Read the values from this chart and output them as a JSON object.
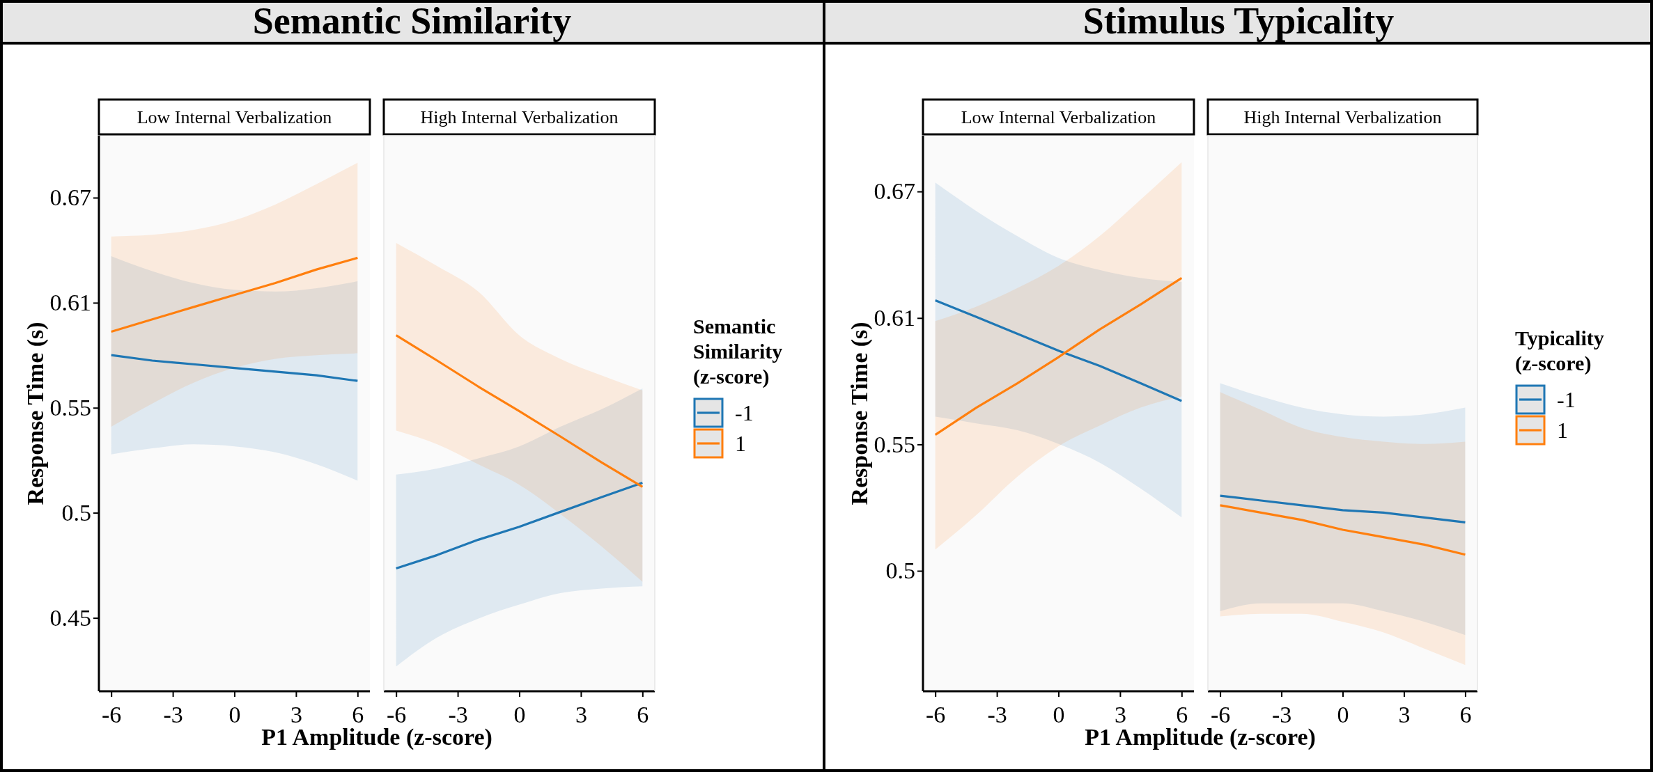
{
  "chart_data": [
    {
      "type": "line",
      "title": "Semantic Similarity",
      "subtitle": "Low Internal Verbalization",
      "xlabel": "P1 Amplitude (z-score)",
      "ylabel": "Response Time (s)",
      "log": "y",
      "xlim": [
        -6.6,
        6.6
      ],
      "xticks": [
        -6,
        -3,
        0,
        3,
        6
      ],
      "ylim": [
        0.419,
        0.711
      ],
      "yticks": [
        {
          "value": 0.4493,
          "label": "0.45"
        },
        {
          "value": 0.4966,
          "label": "0.5"
        },
        {
          "value": 0.5488,
          "label": "0.55"
        },
        {
          "value": 0.6065,
          "label": "0.61"
        },
        {
          "value": 0.6703,
          "label": "0.67"
        }
      ],
      "grid": false,
      "marker": "none",
      "line_style": "solid",
      "series": [
        {
          "color": "#1f77b4",
          "x": [
            -6,
            -4,
            -2,
            0,
            2,
            4,
            6
          ],
          "values": [
            0.577,
            0.574,
            0.572,
            0.57,
            0.568,
            0.566,
            0.563
          ],
          "lower": [
            0.525,
            0.528,
            0.53,
            0.529,
            0.526,
            0.52,
            0.512
          ],
          "upper": [
            0.634,
            0.625,
            0.618,
            0.614,
            0.613,
            0.615,
            0.619
          ]
        },
        {
          "color": "#ff7f0e",
          "x": [
            -6,
            -4,
            -2,
            0,
            2,
            4,
            6
          ],
          "values": [
            0.59,
            0.597,
            0.604,
            0.611,
            0.618,
            0.626,
            0.633
          ],
          "lower": [
            0.539,
            0.551,
            0.562,
            0.57,
            0.575,
            0.577,
            0.578
          ],
          "upper": [
            0.646,
            0.647,
            0.65,
            0.656,
            0.666,
            0.679,
            0.693
          ]
        }
      ]
    },
    {
      "type": "line",
      "subtitle": "High Internal Verbalization",
      "legend_title": "Semantic Similarity (z-score)",
      "legend": "right",
      "log": "y",
      "xlim": [
        -6.6,
        6.6
      ],
      "xticks": [
        -6,
        -3,
        0,
        3,
        6
      ],
      "ylim": [
        0.419,
        0.711
      ],
      "tick_labels": "x",
      "grid": false,
      "marker": "none",
      "line_style": "solid",
      "series": [
        {
          "name": "-1",
          "color": "#1f77b4",
          "x": [
            -6,
            -4,
            -2,
            0,
            2,
            4,
            6
          ],
          "values": [
            0.471,
            0.477,
            0.484,
            0.49,
            0.497,
            0.504,
            0.511
          ],
          "lower": [
            0.429,
            0.441,
            0.449,
            0.455,
            0.46,
            0.462,
            0.463
          ],
          "upper": [
            0.515,
            0.518,
            0.523,
            0.529,
            0.539,
            0.548,
            0.559
          ]
        },
        {
          "name": "1",
          "color": "#ff7f0e",
          "x": [
            -6,
            -4,
            -2,
            0,
            2,
            4,
            6
          ],
          "values": [
            0.588,
            0.574,
            0.56,
            0.547,
            0.534,
            0.521,
            0.509
          ],
          "lower": [
            0.537,
            0.53,
            0.52,
            0.51,
            0.496,
            0.481,
            0.465
          ],
          "upper": [
            0.642,
            0.628,
            0.613,
            0.588,
            0.575,
            0.566,
            0.558
          ]
        }
      ]
    },
    {
      "type": "line",
      "title": "Stimulus Typicality",
      "subtitle": "Low Internal Verbalization",
      "xlabel": "P1 Amplitude (z-score)",
      "ylabel": "Response Time (s)",
      "log": "y",
      "xlim": [
        -6.6,
        6.6
      ],
      "xticks": [
        -6,
        -3,
        0,
        3,
        6
      ],
      "ylim": [
        0.4515,
        0.7005
      ],
      "yticks": [
        {
          "value": 0.4966,
          "label": "0.5"
        },
        {
          "value": 0.5488,
          "label": "0.55"
        },
        {
          "value": 0.6065,
          "label": "0.61"
        },
        {
          "value": 0.6703,
          "label": "0.67"
        }
      ],
      "grid": false,
      "marker": "none",
      "line_style": "solid",
      "series": [
        {
          "color": "#1f77b4",
          "x": [
            -6,
            -4,
            -2,
            0,
            2,
            4,
            6
          ],
          "values": [
            0.615,
            0.607,
            0.599,
            0.591,
            0.584,
            0.576,
            0.568
          ],
          "lower": [
            0.561,
            0.558,
            0.555,
            0.549,
            0.541,
            0.53,
            0.518
          ],
          "upper": [
            0.675,
            0.66,
            0.647,
            0.636,
            0.63,
            0.626,
            0.624
          ]
        },
        {
          "color": "#ff7f0e",
          "x": [
            -6,
            -4,
            -2,
            0,
            2,
            4,
            6
          ],
          "values": [
            0.553,
            0.565,
            0.576,
            0.588,
            0.601,
            0.613,
            0.626
          ],
          "lower": [
            0.505,
            0.519,
            0.535,
            0.548,
            0.557,
            0.565,
            0.57
          ],
          "upper": [
            0.605,
            0.612,
            0.621,
            0.632,
            0.647,
            0.666,
            0.686
          ]
        }
      ]
    },
    {
      "type": "line",
      "subtitle": "High Internal Verbalization",
      "legend_title": "Typicality (z-score)",
      "legend": "right",
      "log": "y",
      "xlim": [
        -6.6,
        6.6
      ],
      "xticks": [
        -6,
        -3,
        0,
        3,
        6
      ],
      "ylim": [
        0.4515,
        0.7005
      ],
      "tick_labels": "x",
      "grid": false,
      "marker": "none",
      "line_style": "solid",
      "series": [
        {
          "name": "-1",
          "color": "#1f77b4",
          "x": [
            -6,
            -4,
            -2,
            0,
            2,
            4,
            6
          ],
          "values": [
            0.527,
            0.525,
            0.523,
            0.521,
            0.52,
            0.518,
            0.516
          ],
          "lower": [
            0.481,
            0.484,
            0.484,
            0.484,
            0.481,
            0.477,
            0.472
          ],
          "upper": [
            0.576,
            0.57,
            0.565,
            0.562,
            0.561,
            0.562,
            0.565
          ]
        },
        {
          "name": "1",
          "color": "#ff7f0e",
          "x": [
            -6,
            -4,
            -2,
            0,
            2,
            4,
            6
          ],
          "values": [
            0.523,
            0.52,
            0.517,
            0.513,
            0.51,
            0.507,
            0.503
          ],
          "lower": [
            0.479,
            0.48,
            0.48,
            0.477,
            0.473,
            0.467,
            0.461
          ],
          "upper": [
            0.572,
            0.564,
            0.556,
            0.552,
            0.55,
            0.549,
            0.55
          ]
        }
      ]
    }
  ]
}
